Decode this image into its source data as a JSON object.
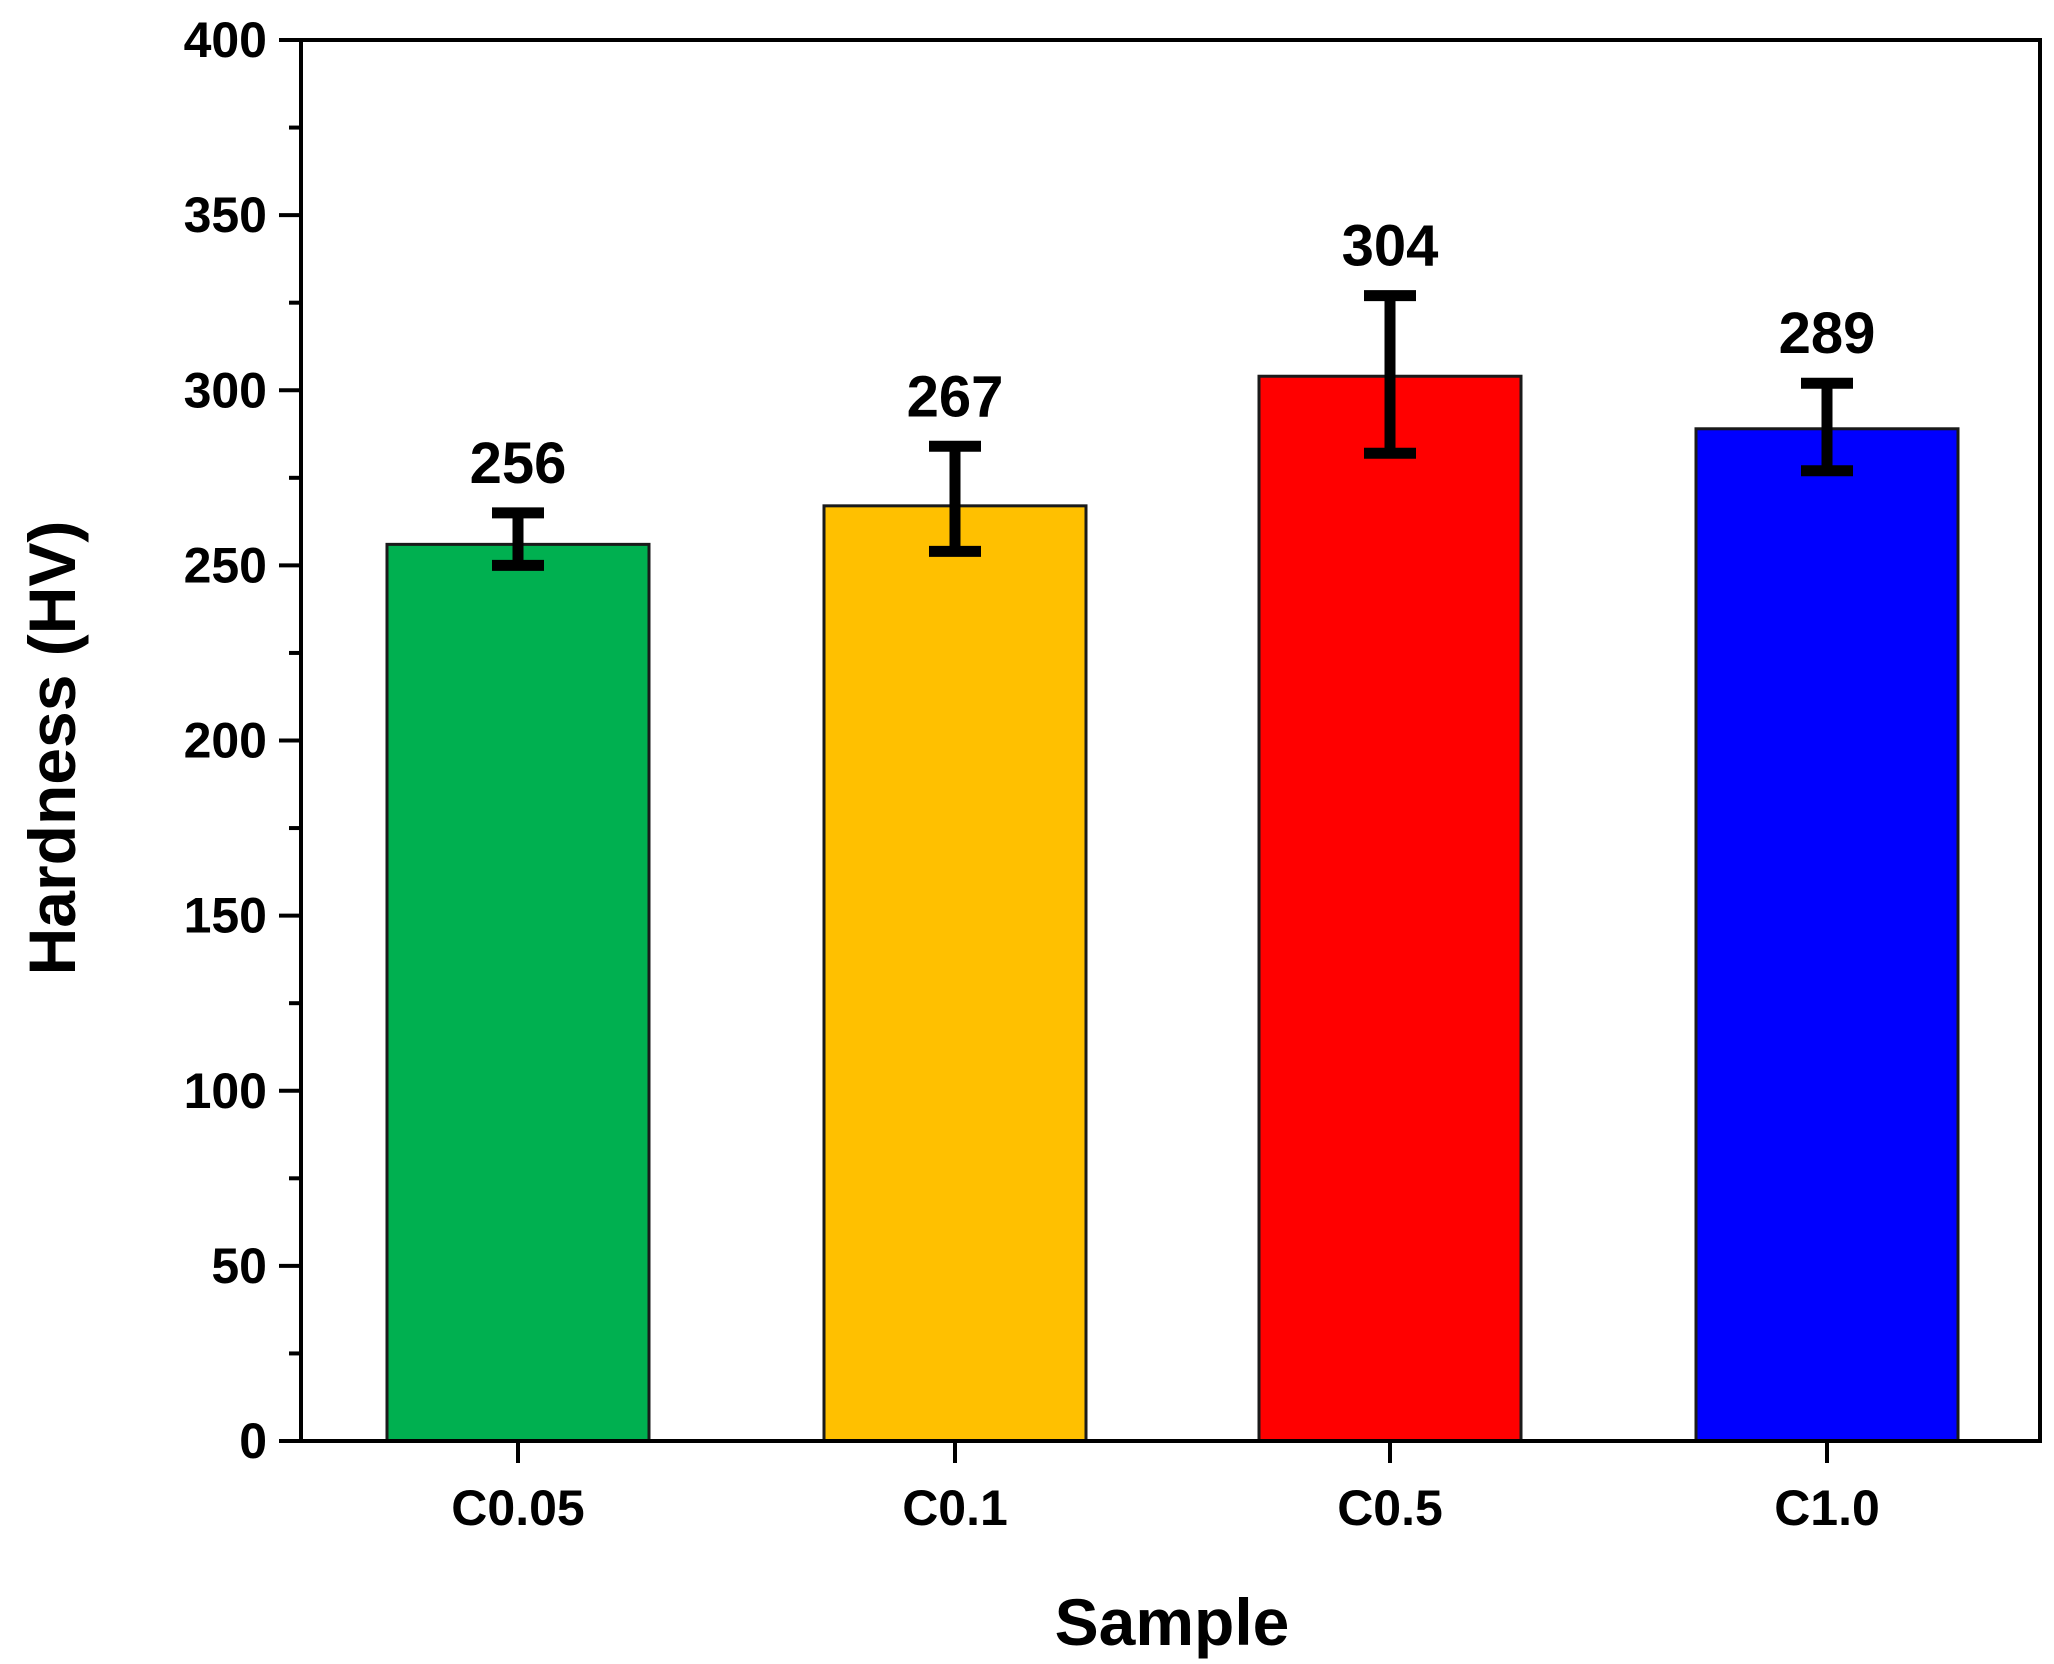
{
  "chart_data": {
    "type": "bar",
    "title": "",
    "xlabel": "Sample",
    "ylabel": "Hardness (HV)",
    "ylim": [
      0,
      400
    ],
    "yticks": [
      0,
      50,
      100,
      150,
      200,
      250,
      300,
      350,
      400
    ],
    "yticks_labels": [
      "0",
      "50",
      "100",
      "150",
      "200",
      "250",
      "300",
      "350",
      "400"
    ],
    "categories": [
      "C0.05",
      "C0.1",
      "C0.5",
      "C1.0"
    ],
    "values": [
      256,
      267,
      304,
      289
    ],
    "value_labels": [
      "256",
      "267",
      "304",
      "289"
    ],
    "error_bars": [
      {
        "low": 250,
        "high": 265
      },
      {
        "low": 254,
        "high": 284
      },
      {
        "low": 282,
        "high": 327
      },
      {
        "low": 277,
        "high": 302
      }
    ],
    "colors": [
      "#00b050",
      "#ffc000",
      "#ff0000",
      "#0000ff"
    ],
    "edge_color": "#1a1a1a",
    "grid": false
  }
}
